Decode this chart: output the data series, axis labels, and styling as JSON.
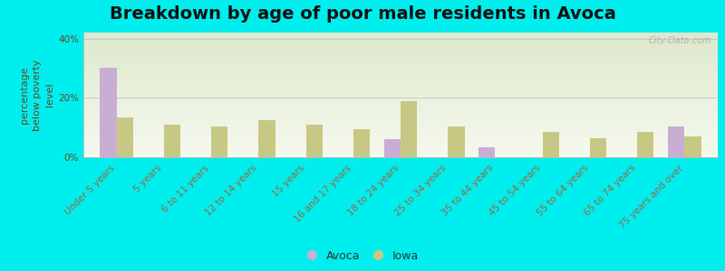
{
  "title": "Breakdown by age of poor male residents in Avoca",
  "ylabel": "percentage\nbelow poverty\nlevel",
  "categories": [
    "Under 5 years",
    "5 years",
    "6 to 11 years",
    "12 to 14 years",
    "15 years",
    "16 and 17 years",
    "18 to 24 years",
    "25 to 34 years",
    "35 to 44 years",
    "45 to 54 years",
    "55 to 64 years",
    "65 to 74 years",
    "75 years and over"
  ],
  "avoca_values": [
    30.0,
    0,
    0,
    0,
    0,
    0,
    6.0,
    0,
    3.5,
    0,
    0,
    0,
    10.5
  ],
  "iowa_values": [
    13.5,
    11.0,
    10.5,
    12.5,
    11.0,
    9.5,
    19.0,
    10.5,
    0,
    8.5,
    6.5,
    8.5,
    7.0
  ],
  "avoca_color": "#c9aed4",
  "iowa_color": "#c8c885",
  "background_top": "#dde8cc",
  "background_bottom": "#f5f9ee",
  "outer_background": "#00eeee",
  "ylim": [
    0,
    42
  ],
  "yticks": [
    0,
    20,
    40
  ],
  "ytick_labels": [
    "0%",
    "20%",
    "40%"
  ],
  "bar_width": 0.35,
  "title_fontsize": 14,
  "axis_label_fontsize": 8,
  "tick_label_fontsize": 7.5,
  "watermark": "City-Data.com",
  "label_color": "#996644",
  "ylabel_color": "#664422"
}
